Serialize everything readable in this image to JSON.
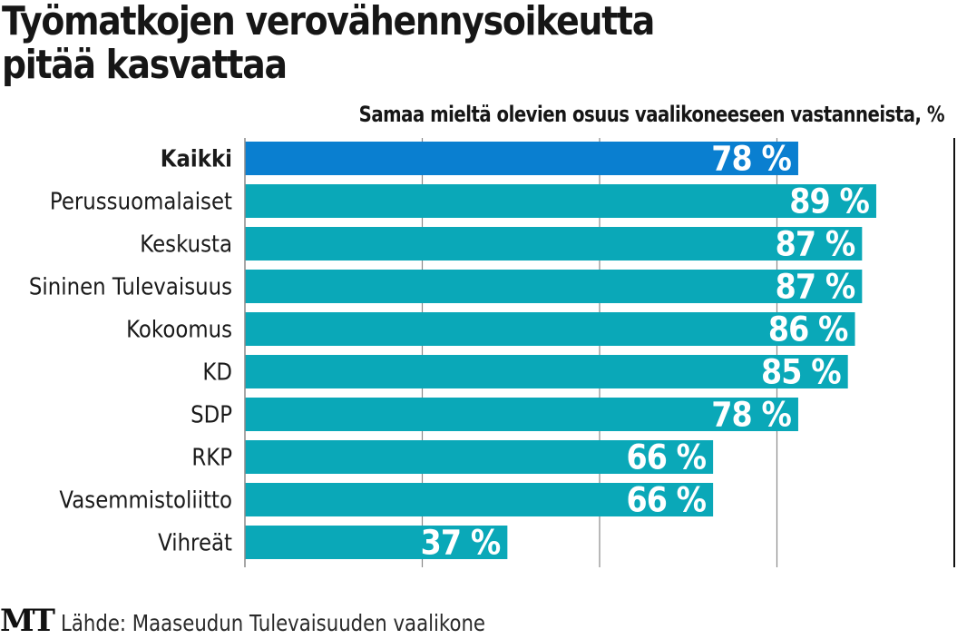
{
  "header": {
    "title_lines": [
      "Työmatkojen verovähennysoikeutta",
      "pitää kasvattaa"
    ],
    "subtitle": "Samaa mieltä olevien osuus vaalikoneeseen vastanneista, %"
  },
  "footer": {
    "logo": "MT",
    "source": "Lähde: Maaseudun Tulevaisuuden vaalikone"
  },
  "colors": {
    "highlight_bar": "#0a7fd0",
    "bar": "#0aa8b8",
    "label_text": "#1a1a1a",
    "value_text": "#ffffff",
    "gridline": "#8a8a8a"
  },
  "chart_data": {
    "type": "bar",
    "orientation": "horizontal",
    "title": "Työmatkojen verovähennysoikeutta pitää kasvattaa",
    "subtitle": "Samaa mieltä olevien osuus vaalikoneeseen vastanneista, %",
    "categories": [
      "Kaikki",
      "Perussuomalaiset",
      "Keskusta",
      "Sininen Tulevaisuus",
      "Kokoomus",
      "KD",
      "SDP",
      "RKP",
      "Vasemmistoliitto",
      "Vihreät"
    ],
    "values": [
      78,
      89,
      87,
      87,
      86,
      85,
      78,
      66,
      66,
      37
    ],
    "value_labels": [
      "78 %",
      "89 %",
      "87 %",
      "87 %",
      "86 %",
      "85 %",
      "78 %",
      "66 %",
      "66 %",
      "37 %"
    ],
    "highlighted": [
      "Kaikki"
    ],
    "xlabel": "",
    "ylabel": "",
    "xlim": [
      0,
      100
    ],
    "gridlines": [
      25,
      50,
      75,
      100
    ],
    "grid": true,
    "legend": "none",
    "source": "Lähde: Maaseudun Tulevaisuuden vaalikone"
  }
}
